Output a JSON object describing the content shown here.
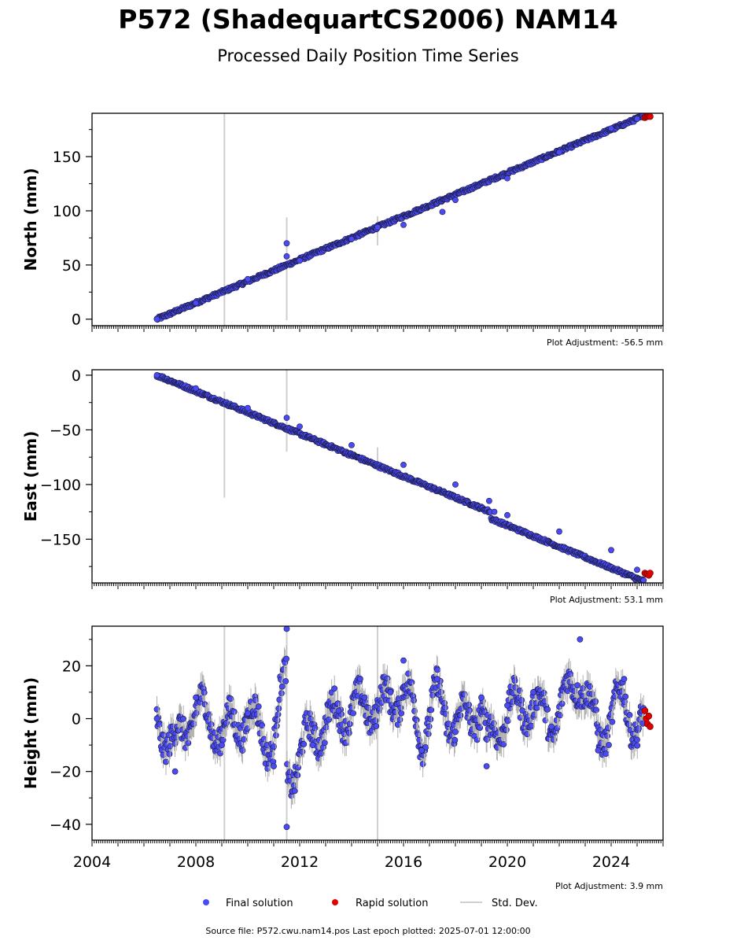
{
  "header": {
    "title": "P572 (ShadequartCS2006) NAM14",
    "subtitle": "Processed Daily Position Time Series"
  },
  "footer": {
    "source": "Source file: P572.cwu.nam14.pos  Last epoch plotted: 2025-07-01 12:00:00"
  },
  "colors": {
    "final": "#4b4bf5",
    "rapid": "#e00000",
    "std": "#a0a0a0",
    "edge": "#1a1a40"
  },
  "chart_data": [
    {
      "type": "scatter",
      "ylabel": "North (mm)",
      "adjustment": "Plot Adjustment: -56.5 mm",
      "xlim": [
        2004,
        2026
      ],
      "ylim": [
        -6,
        190
      ],
      "yticks": [
        0,
        50,
        100,
        150
      ],
      "ytick_labels": [
        "0",
        "50",
        "100",
        "150"
      ],
      "grid": false,
      "trend": {
        "start": [
          2006.5,
          0
        ],
        "end": [
          2025.2,
          187
        ]
      },
      "noise": 1.5,
      "series": [
        {
          "name": "Final solution",
          "x": [
            2006.5,
            2008.0,
            2010.0,
            2011.5,
            2011.5,
            2012.0,
            2014.0,
            2015.0,
            2016.0,
            2017.5,
            2018.0,
            2020.0,
            2022.0,
            2024.0,
            2025.0
          ],
          "values": [
            0,
            15,
            37,
            70,
            58,
            54,
            74,
            85,
            87,
            99,
            110,
            130,
            154,
            176,
            185
          ]
        },
        {
          "name": "Rapid solution",
          "x": [
            2025.3,
            2025.35,
            2025.4,
            2025.45,
            2025.5
          ],
          "values": [
            186,
            187,
            187,
            188,
            187
          ]
        }
      ],
      "std_spikes": [
        [
          2009.1,
          -6,
          190
        ],
        [
          2011.5,
          -1,
          94
        ],
        [
          2015.0,
          68,
          95
        ]
      ]
    },
    {
      "type": "scatter",
      "ylabel": "East (mm)",
      "adjustment": "Plot Adjustment: 53.1 mm",
      "xlim": [
        2004,
        2026
      ],
      "ylim": [
        -190,
        5
      ],
      "yticks": [
        0,
        -50,
        -100,
        -150
      ],
      "ytick_labels": [
        "0",
        "−50",
        "−100",
        "−150"
      ],
      "grid": false,
      "trend": {
        "start": [
          2006.5,
          0
        ],
        "end": [
          2025.2,
          -182
        ]
      },
      "noise": 1.5,
      "series": [
        {
          "name": "Final solution",
          "x": [
            2006.5,
            2008.0,
            2010.0,
            2011.5,
            2012.0,
            2014.0,
            2016.0,
            2018.0,
            2019.3,
            2019.5,
            2020.0,
            2022.0,
            2024.0,
            2025.0
          ],
          "values": [
            0,
            -12,
            -30,
            -39,
            -47,
            -64,
            -82,
            -100,
            -115,
            -125,
            -128,
            -143,
            -160,
            -178
          ]
        },
        {
          "name": "Rapid solution",
          "x": [
            2025.3,
            2025.35,
            2025.4,
            2025.45,
            2025.5
          ],
          "values": [
            -181,
            -182,
            -182,
            -183,
            -181
          ]
        }
      ],
      "std_spikes": [
        [
          2009.1,
          -112,
          -15
        ],
        [
          2011.5,
          -70,
          5
        ],
        [
          2015.0,
          -86,
          -66
        ]
      ]
    },
    {
      "type": "scatter",
      "ylabel": "Height (mm)",
      "adjustment": "Plot Adjustment: 3.9 mm",
      "xlim": [
        2004,
        2026
      ],
      "ylim": [
        -46,
        35
      ],
      "yticks": [
        20,
        0,
        -20,
        -40
      ],
      "ytick_labels": [
        "20",
        "0",
        "−20",
        "−40"
      ],
      "xticks": [
        2004,
        2008,
        2012,
        2016,
        2020,
        2024
      ],
      "xtick_labels": [
        "2004",
        "2008",
        "2012",
        "2016",
        "2020",
        "2024"
      ],
      "grid": false,
      "noise": 5,
      "series": [
        {
          "name": "Final solution",
          "x": [
            2006.5,
            2007.2,
            2008.0,
            2009.0,
            2010.0,
            2011.0,
            2011.5,
            2011.5,
            2012.5,
            2013.5,
            2014.5,
            2015.5,
            2016.0,
            2016.7,
            2017.3,
            2018.0,
            2019.0,
            2019.2,
            2020.0,
            2021.0,
            2021.7,
            2022.8,
            2023.5,
            2024.5,
            2025.0
          ],
          "values": [
            0,
            -20,
            8,
            -10,
            2,
            -18,
            34,
            -41,
            -10,
            3,
            8,
            10,
            22,
            -12,
            15,
            -5,
            8,
            -18,
            5,
            10,
            -3,
            30,
            -12,
            15,
            -8
          ]
        },
        {
          "name": "Rapid solution",
          "x": [
            2025.3,
            2025.35,
            2025.4,
            2025.45,
            2025.5
          ],
          "values": [
            3,
            0,
            -2,
            1,
            -3
          ]
        }
      ],
      "std_spikes": [
        [
          2009.1,
          -46,
          35
        ],
        [
          2011.5,
          -46,
          35
        ],
        [
          2015.0,
          -46,
          35
        ]
      ]
    }
  ],
  "legend": {
    "position": "bottom-center",
    "items": [
      {
        "label": "Final solution",
        "kind": "final"
      },
      {
        "label": "Rapid solution",
        "kind": "rapid"
      },
      {
        "label": "Std. Dev.",
        "kind": "std"
      }
    ]
  }
}
